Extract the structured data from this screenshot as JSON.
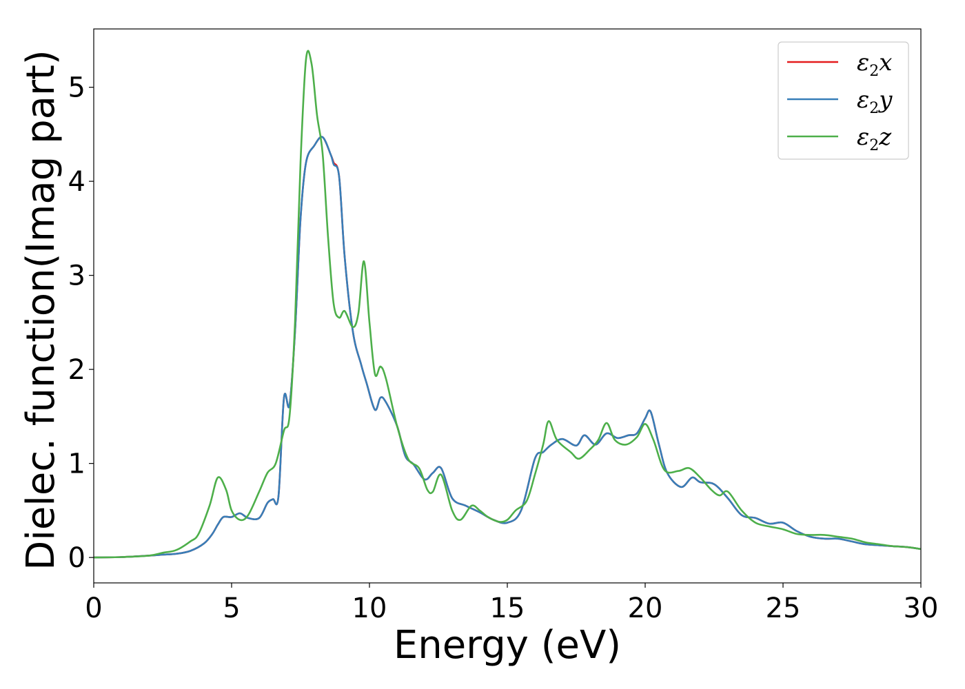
{
  "chart_data": {
    "type": "line",
    "title": "",
    "xlabel": "Energy (eV)",
    "ylabel": "Dielec. function(Imag part)",
    "xlim": [
      0,
      30
    ],
    "ylim": [
      -0.27,
      5.62
    ],
    "xticks": [
      0,
      5,
      10,
      15,
      20,
      25,
      30
    ],
    "yticks": [
      0,
      1,
      2,
      3,
      4,
      5
    ],
    "xtick_labels": [
      "0",
      "5",
      "10",
      "15",
      "20",
      "25",
      "30"
    ],
    "ytick_labels": [
      "0",
      "1",
      "2",
      "3",
      "4",
      "5"
    ],
    "grid": false,
    "legend_position": "top-right",
    "series": [
      {
        "name": "ε2x",
        "label_main": "ε",
        "label_sub": "2",
        "label_var": "x",
        "color": "#e41a1c",
        "points": [
          [
            0,
            0
          ],
          [
            1,
            0.005
          ],
          [
            2,
            0.02
          ],
          [
            2.5,
            0.03
          ],
          [
            3,
            0.04
          ],
          [
            3.5,
            0.07
          ],
          [
            4,
            0.15
          ],
          [
            4.3,
            0.25
          ],
          [
            4.5,
            0.35
          ],
          [
            4.7,
            0.43
          ],
          [
            5,
            0.43
          ],
          [
            5.3,
            0.47
          ],
          [
            5.6,
            0.42
          ],
          [
            6,
            0.42
          ],
          [
            6.3,
            0.58
          ],
          [
            6.5,
            0.62
          ],
          [
            6.7,
            0.65
          ],
          [
            6.9,
            1.7
          ],
          [
            7.1,
            1.62
          ],
          [
            7.3,
            2.4
          ],
          [
            7.5,
            3.6
          ],
          [
            7.7,
            4.2
          ],
          [
            8.0,
            4.38
          ],
          [
            8.3,
            4.47
          ],
          [
            8.6,
            4.28
          ],
          [
            8.7,
            4.2
          ],
          [
            8.9,
            4.05
          ],
          [
            9.1,
            3.2
          ],
          [
            9.4,
            2.4
          ],
          [
            9.7,
            2.05
          ],
          [
            9.9,
            1.85
          ],
          [
            10.2,
            1.57
          ],
          [
            10.4,
            1.7
          ],
          [
            10.6,
            1.65
          ],
          [
            11,
            1.4
          ],
          [
            11.3,
            1.08
          ],
          [
            11.6,
            0.99
          ],
          [
            12,
            0.83
          ],
          [
            12.3,
            0.9
          ],
          [
            12.6,
            0.95
          ],
          [
            13,
            0.63
          ],
          [
            13.5,
            0.55
          ],
          [
            14,
            0.48
          ],
          [
            14.5,
            0.4
          ],
          [
            15,
            0.37
          ],
          [
            15.5,
            0.5
          ],
          [
            16,
            1.05
          ],
          [
            16.3,
            1.12
          ],
          [
            16.6,
            1.2
          ],
          [
            17,
            1.26
          ],
          [
            17.5,
            1.19
          ],
          [
            17.8,
            1.3
          ],
          [
            18.2,
            1.2
          ],
          [
            18.6,
            1.32
          ],
          [
            19,
            1.27
          ],
          [
            19.4,
            1.3
          ],
          [
            19.7,
            1.32
          ],
          [
            20,
            1.48
          ],
          [
            20.2,
            1.55
          ],
          [
            20.5,
            1.2
          ],
          [
            20.8,
            0.9
          ],
          [
            21.3,
            0.75
          ],
          [
            21.7,
            0.85
          ],
          [
            22,
            0.8
          ],
          [
            22.5,
            0.78
          ],
          [
            23,
            0.63
          ],
          [
            23.5,
            0.45
          ],
          [
            24,
            0.42
          ],
          [
            24.5,
            0.36
          ],
          [
            25,
            0.37
          ],
          [
            25.5,
            0.28
          ],
          [
            26,
            0.22
          ],
          [
            26.5,
            0.2
          ],
          [
            27,
            0.2
          ],
          [
            27.5,
            0.17
          ],
          [
            28,
            0.14
          ],
          [
            28.5,
            0.13
          ],
          [
            29,
            0.12
          ],
          [
            29.5,
            0.11
          ],
          [
            30,
            0.09
          ]
        ]
      },
      {
        "name": "ε2y",
        "label_main": "ε",
        "label_sub": "2",
        "label_var": "y",
        "color": "#377eb8",
        "points": [
          [
            0,
            0
          ],
          [
            1,
            0.005
          ],
          [
            2,
            0.02
          ],
          [
            2.5,
            0.03
          ],
          [
            3,
            0.04
          ],
          [
            3.5,
            0.07
          ],
          [
            4,
            0.15
          ],
          [
            4.3,
            0.25
          ],
          [
            4.5,
            0.35
          ],
          [
            4.7,
            0.43
          ],
          [
            5,
            0.43
          ],
          [
            5.3,
            0.47
          ],
          [
            5.6,
            0.42
          ],
          [
            6,
            0.42
          ],
          [
            6.3,
            0.58
          ],
          [
            6.5,
            0.62
          ],
          [
            6.7,
            0.65
          ],
          [
            6.9,
            1.7
          ],
          [
            7.1,
            1.62
          ],
          [
            7.3,
            2.4
          ],
          [
            7.5,
            3.6
          ],
          [
            7.7,
            4.2
          ],
          [
            8.0,
            4.38
          ],
          [
            8.3,
            4.47
          ],
          [
            8.6,
            4.28
          ],
          [
            8.7,
            4.18
          ],
          [
            8.9,
            4.05
          ],
          [
            9.1,
            3.2
          ],
          [
            9.4,
            2.4
          ],
          [
            9.7,
            2.05
          ],
          [
            9.9,
            1.85
          ],
          [
            10.2,
            1.57
          ],
          [
            10.4,
            1.7
          ],
          [
            10.6,
            1.65
          ],
          [
            11,
            1.4
          ],
          [
            11.3,
            1.08
          ],
          [
            11.6,
            0.99
          ],
          [
            12,
            0.83
          ],
          [
            12.3,
            0.9
          ],
          [
            12.6,
            0.95
          ],
          [
            13,
            0.63
          ],
          [
            13.5,
            0.55
          ],
          [
            14,
            0.48
          ],
          [
            14.5,
            0.4
          ],
          [
            15,
            0.37
          ],
          [
            15.5,
            0.5
          ],
          [
            16,
            1.05
          ],
          [
            16.3,
            1.12
          ],
          [
            16.6,
            1.2
          ],
          [
            17,
            1.26
          ],
          [
            17.5,
            1.19
          ],
          [
            17.8,
            1.3
          ],
          [
            18.2,
            1.2
          ],
          [
            18.6,
            1.32
          ],
          [
            19,
            1.27
          ],
          [
            19.4,
            1.3
          ],
          [
            19.7,
            1.32
          ],
          [
            20,
            1.48
          ],
          [
            20.2,
            1.55
          ],
          [
            20.5,
            1.2
          ],
          [
            20.8,
            0.9
          ],
          [
            21.3,
            0.75
          ],
          [
            21.7,
            0.85
          ],
          [
            22,
            0.8
          ],
          [
            22.5,
            0.78
          ],
          [
            23,
            0.63
          ],
          [
            23.5,
            0.45
          ],
          [
            24,
            0.42
          ],
          [
            24.5,
            0.36
          ],
          [
            25,
            0.37
          ],
          [
            25.5,
            0.28
          ],
          [
            26,
            0.22
          ],
          [
            26.5,
            0.2
          ],
          [
            27,
            0.2
          ],
          [
            27.5,
            0.17
          ],
          [
            28,
            0.14
          ],
          [
            28.5,
            0.13
          ],
          [
            29,
            0.12
          ],
          [
            29.5,
            0.11
          ],
          [
            30,
            0.09
          ]
        ]
      },
      {
        "name": "ε2z",
        "label_main": "ε",
        "label_sub": "2",
        "label_var": "z",
        "color": "#4daf4a",
        "points": [
          [
            0,
            0
          ],
          [
            1,
            0.005
          ],
          [
            2,
            0.02
          ],
          [
            2.5,
            0.05
          ],
          [
            3,
            0.08
          ],
          [
            3.5,
            0.17
          ],
          [
            3.8,
            0.25
          ],
          [
            4.2,
            0.55
          ],
          [
            4.5,
            0.85
          ],
          [
            4.8,
            0.72
          ],
          [
            5,
            0.5
          ],
          [
            5.3,
            0.4
          ],
          [
            5.6,
            0.45
          ],
          [
            6,
            0.7
          ],
          [
            6.3,
            0.9
          ],
          [
            6.6,
            1.0
          ],
          [
            6.9,
            1.35
          ],
          [
            7.1,
            1.5
          ],
          [
            7.3,
            2.5
          ],
          [
            7.5,
            4.2
          ],
          [
            7.7,
            5.3
          ],
          [
            7.9,
            5.25
          ],
          [
            8.1,
            4.7
          ],
          [
            8.3,
            4.3
          ],
          [
            8.5,
            3.4
          ],
          [
            8.7,
            2.7
          ],
          [
            8.9,
            2.55
          ],
          [
            9.1,
            2.62
          ],
          [
            9.4,
            2.45
          ],
          [
            9.6,
            2.6
          ],
          [
            9.8,
            3.15
          ],
          [
            10,
            2.5
          ],
          [
            10.2,
            1.95
          ],
          [
            10.4,
            2.03
          ],
          [
            10.6,
            1.9
          ],
          [
            11,
            1.4
          ],
          [
            11.4,
            1.05
          ],
          [
            11.8,
            0.95
          ],
          [
            12.1,
            0.72
          ],
          [
            12.3,
            0.7
          ],
          [
            12.6,
            0.88
          ],
          [
            13,
            0.5
          ],
          [
            13.3,
            0.4
          ],
          [
            13.7,
            0.55
          ],
          [
            14,
            0.5
          ],
          [
            14.3,
            0.43
          ],
          [
            14.7,
            0.38
          ],
          [
            15,
            0.4
          ],
          [
            15.3,
            0.5
          ],
          [
            15.7,
            0.6
          ],
          [
            16,
            0.88
          ],
          [
            16.3,
            1.2
          ],
          [
            16.5,
            1.45
          ],
          [
            16.8,
            1.25
          ],
          [
            17.3,
            1.12
          ],
          [
            17.6,
            1.05
          ],
          [
            18,
            1.15
          ],
          [
            18.3,
            1.25
          ],
          [
            18.6,
            1.43
          ],
          [
            18.9,
            1.25
          ],
          [
            19.3,
            1.2
          ],
          [
            19.7,
            1.28
          ],
          [
            20,
            1.42
          ],
          [
            20.3,
            1.25
          ],
          [
            20.7,
            0.93
          ],
          [
            21.2,
            0.92
          ],
          [
            21.6,
            0.95
          ],
          [
            22,
            0.85
          ],
          [
            22.4,
            0.72
          ],
          [
            22.7,
            0.66
          ],
          [
            23,
            0.7
          ],
          [
            23.5,
            0.5
          ],
          [
            24,
            0.37
          ],
          [
            24.5,
            0.33
          ],
          [
            25,
            0.3
          ],
          [
            25.5,
            0.25
          ],
          [
            26,
            0.24
          ],
          [
            26.5,
            0.24
          ],
          [
            27,
            0.22
          ],
          [
            27.5,
            0.2
          ],
          [
            28,
            0.16
          ],
          [
            28.5,
            0.14
          ],
          [
            29,
            0.12
          ],
          [
            29.5,
            0.11
          ],
          [
            30,
            0.09
          ]
        ]
      }
    ]
  }
}
